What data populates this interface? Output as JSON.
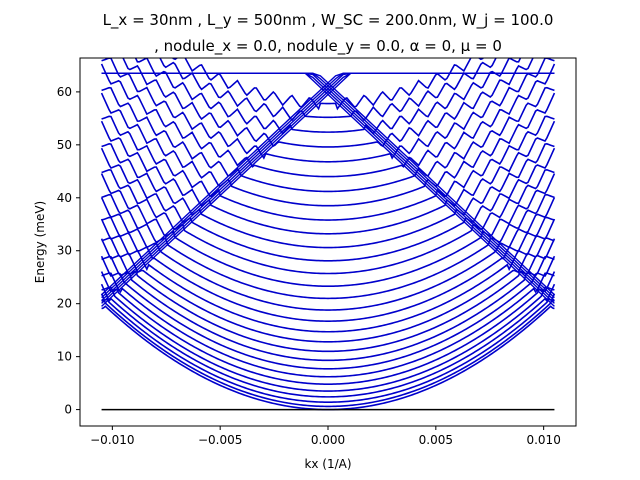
{
  "chart_data": {
    "type": "line",
    "title_line1": "L_x = 30nm , L_y = 500nm , W_SC = 200.0nm, W_j = 100.0",
    "title_line2": ", nodule_x = 0.0, nodule_y = 0.0, α = 0, μ = 0",
    "xlabel": "kx (1/A)",
    "ylabel": "Energy (meV)",
    "xlim": [
      -0.0115,
      0.0115
    ],
    "ylim": [
      -3.1,
      66.4
    ],
    "xticks": [
      -0.01,
      -0.005,
      0.0,
      0.005,
      0.01
    ],
    "xtick_labels": [
      "−0.010",
      "−0.005",
      "0.000",
      "0.005",
      "0.010"
    ],
    "yticks": [
      0,
      10,
      20,
      30,
      40,
      50,
      60
    ],
    "ytick_labels": [
      "0",
      "10",
      "20",
      "30",
      "40",
      "50",
      "60"
    ],
    "x_range": [
      -0.0105,
      0.0105
    ],
    "parabola_curvature_meV_A2": 183000,
    "band_offsets_meV": [
      0,
      0.6,
      1.4,
      2.4,
      3.5,
      4.8,
      6.2,
      7.7,
      9.3,
      11.0,
      12.8,
      14.7,
      16.7,
      18.8,
      21.0,
      23.3,
      25.7,
      28.1,
      30.6,
      33.2,
      35.8,
      38.5,
      41.2,
      44.0,
      46.8,
      49.6,
      52.4,
      55.2,
      57.8
    ],
    "dispersion_series": {
      "name": "",
      "color": "#0000cc",
      "k_period": 0.00084,
      "amplitude_meV": 1.1
    },
    "v_branches": {
      "color": "#0000cc",
      "apex_meV": 59.5,
      "edge_meV": 19.5
    },
    "zero_line": {
      "y": 0,
      "color": "#000000"
    },
    "grid": false
  }
}
